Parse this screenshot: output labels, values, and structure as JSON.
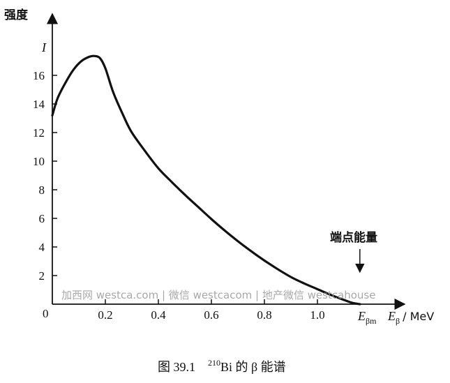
{
  "chart_data": {
    "type": "line",
    "ylabel": "强度",
    "y_top_label": "I",
    "xlabel": "E_β / MeV",
    "xlabel_parts": {
      "main": "E",
      "sub": "β",
      "unit": "/ MeV"
    },
    "endpoint_tick_label": {
      "main": "E",
      "sub": "βm"
    },
    "origin_label": "0",
    "annotation": "端点能量",
    "caption": {
      "prefix": "图 39.1",
      "mass_number": "210",
      "suffix": "Bi 的 β 能谱"
    },
    "watermark": "加西网 westca.com | 微信 westcacom | 地产微信 westcahouse",
    "x_ticks": [
      0.2,
      0.4,
      0.6,
      0.8,
      1.0
    ],
    "x_tick_labels": [
      "0.2",
      "0.4",
      "0.6",
      "0.8",
      "1.0"
    ],
    "y_ticks": [
      2,
      4,
      6,
      8,
      10,
      12,
      14,
      16
    ],
    "y_tick_labels": [
      "2",
      "4",
      "6",
      "8",
      "10",
      "12",
      "14",
      "16"
    ],
    "xlim": [
      0,
      1.25
    ],
    "ylim": [
      0,
      19.5
    ],
    "endpoint_energy": 1.16,
    "series": [
      {
        "x": [
          0.0,
          0.02,
          0.05,
          0.08,
          0.11,
          0.14,
          0.16,
          0.18,
          0.2,
          0.23,
          0.27,
          0.3,
          0.35,
          0.4,
          0.45,
          0.5,
          0.55,
          0.6,
          0.65,
          0.7,
          0.75,
          0.8,
          0.85,
          0.9,
          0.95,
          1.0,
          1.05,
          1.1,
          1.13,
          1.16
        ],
        "y": [
          13.2,
          14.4,
          15.5,
          16.4,
          17.0,
          17.3,
          17.35,
          17.2,
          16.5,
          14.8,
          13.1,
          12.0,
          10.7,
          9.5,
          8.55,
          7.65,
          6.8,
          5.95,
          5.15,
          4.4,
          3.7,
          3.05,
          2.45,
          1.9,
          1.45,
          1.05,
          0.65,
          0.3,
          0.1,
          0.0
        ]
      }
    ]
  }
}
